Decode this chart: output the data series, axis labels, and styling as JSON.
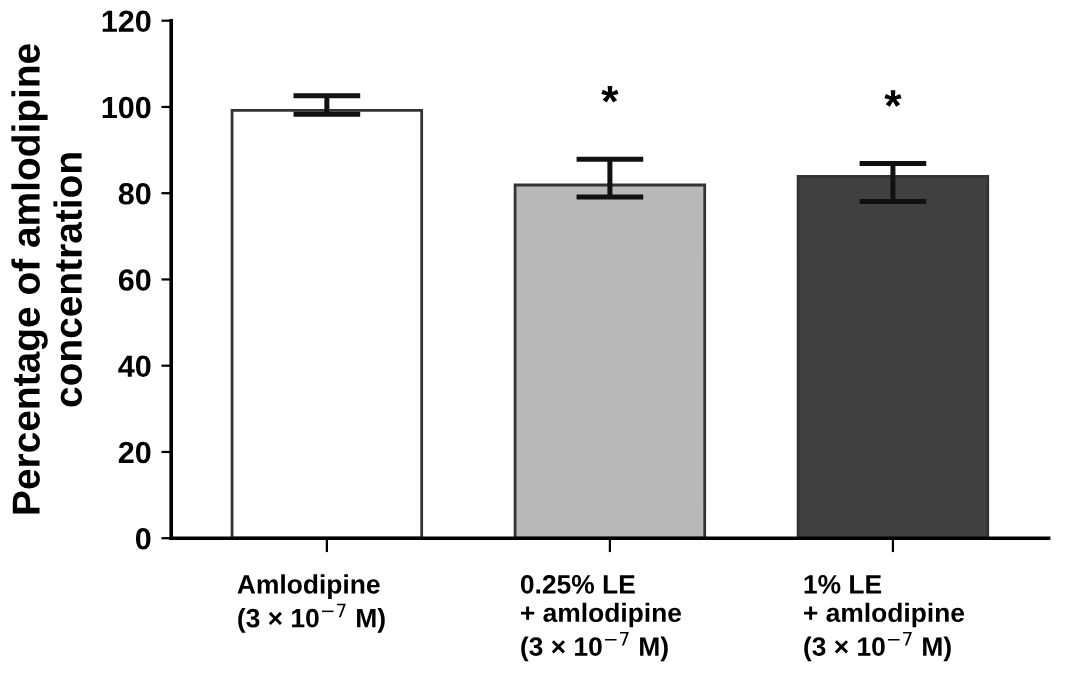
{
  "chart_data": {
    "type": "bar",
    "ylabel": "Percentage of amlodipine\nconcentration",
    "categories": [
      "Amlodipine\n(3 × 10$^{−7}$ M)",
      "0.25% LE\n+ amlodipine\n(3 × 10$^{−7}$ M)",
      "1% LE\n+ amlodipine\n(3 × 10$^{−7}$ M)"
    ],
    "values": [
      99.2,
      81.9,
      83.9
    ],
    "errors": [
      [
        98.3,
        102.6
      ],
      [
        79.1,
        87.9
      ],
      [
        78.1,
        86.9
      ]
    ],
    "colors": [
      "#ffffff",
      "#b8b8b8",
      "#404040"
    ],
    "ylim": [
      0,
      120
    ],
    "yticks": [
      0,
      20,
      40,
      60,
      80,
      100,
      120
    ],
    "grid": false,
    "annotations": [
      "*",
      "*"
    ]
  }
}
